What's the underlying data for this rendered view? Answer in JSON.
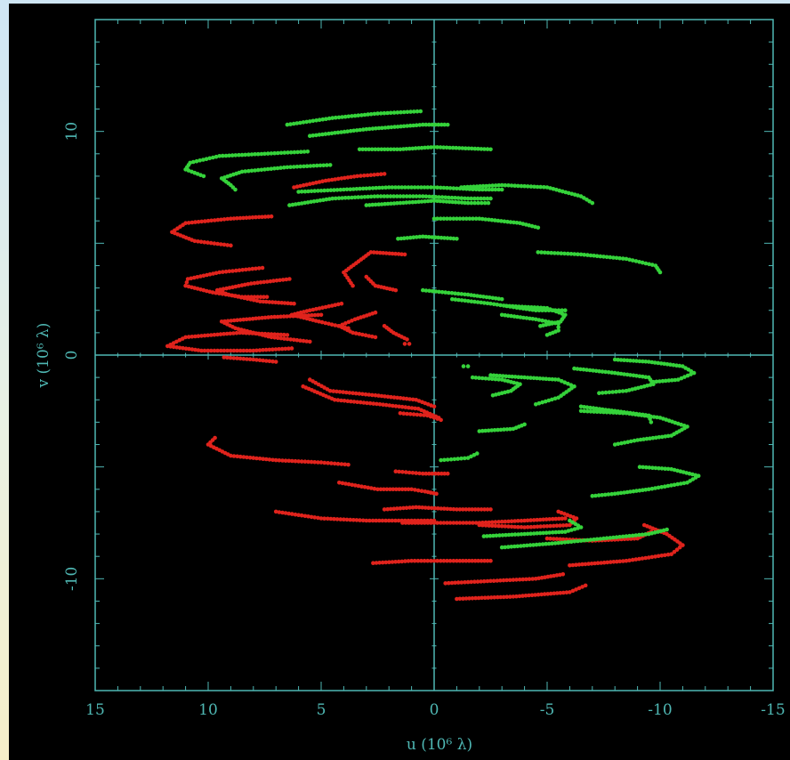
{
  "chart_data": {
    "type": "scatter",
    "title": "",
    "xlabel": "u  (10⁶ λ)",
    "ylabel": "v  (10⁶ λ)",
    "xlim": [
      15,
      -15
    ],
    "ylim": [
      -15,
      15
    ],
    "xticks": [
      15,
      10,
      5,
      0,
      -5,
      -10,
      -15
    ],
    "xtick_labels": [
      "15",
      "10",
      "5",
      "0",
      "-5",
      "-10",
      "-15"
    ],
    "yticks": [
      -10,
      0,
      10
    ],
    "ytick_labels": [
      "-10",
      "0",
      "10"
    ],
    "grid": false,
    "zero_lines": true,
    "colors": {
      "background": "#000000",
      "axes": "#4fb8b4",
      "red": "#e0231c",
      "green": "#35d23a"
    },
    "series": [
      {
        "color": "red",
        "tracks": [
          {
            "name": "r1",
            "x": [
              6.2,
              4.8,
              3.4,
              2.2
            ],
            "y": [
              7.5,
              7.8,
              8.0,
              8.1
            ]
          },
          {
            "name": "r2",
            "x": [
              7.2,
              9.0,
              11.0,
              11.6,
              10.6,
              9.0
            ],
            "y": [
              6.2,
              6.1,
              5.9,
              5.5,
              5.1,
              4.9
            ]
          },
          {
            "name": "r3",
            "x": [
              7.6,
              9.5,
              10.9,
              11.0,
              9.8,
              8.5,
              7.4
            ],
            "y": [
              3.9,
              3.7,
              3.4,
              3.1,
              2.8,
              2.6,
              2.6
            ]
          },
          {
            "name": "r4",
            "x": [
              6.4,
              8.1,
              9.6,
              9.1,
              7.7,
              6.2
            ],
            "y": [
              3.4,
              3.2,
              2.9,
              2.7,
              2.4,
              2.3
            ]
          },
          {
            "name": "r5",
            "x": [
              1.3,
              2.8,
              4.0,
              3.6
            ],
            "y": [
              4.5,
              4.6,
              3.7,
              3.1
            ]
          },
          {
            "name": "r6",
            "x": [
              3.0,
              2.6,
              1.7
            ],
            "y": [
              3.5,
              3.1,
              2.9
            ]
          },
          {
            "name": "r7",
            "x": [
              4.1,
              5.5,
              6.3,
              5.1,
              3.8
            ],
            "y": [
              2.3,
              2.0,
              1.8,
              1.5,
              1.2
            ]
          },
          {
            "name": "r8",
            "x": [
              5.0,
              7.2,
              9.4,
              8.8,
              7.2,
              5.5
            ],
            "y": [
              1.8,
              1.7,
              1.5,
              1.2,
              0.8,
              0.6
            ]
          },
          {
            "name": "r9",
            "x": [
              2.6,
              3.5,
              4.2,
              3.6,
              2.6
            ],
            "y": [
              1.9,
              1.6,
              1.3,
              1.0,
              0.8
            ]
          },
          {
            "name": "r10",
            "x": [
              6.5,
              8.6,
              11.0,
              11.8,
              10.3,
              8.0,
              6.3
            ],
            "y": [
              0.9,
              1.0,
              0.8,
              0.4,
              0.2,
              0.2,
              0.3
            ]
          },
          {
            "name": "r11",
            "x": [
              2.2,
              1.8,
              1.2
            ],
            "y": [
              1.3,
              1.0,
              0.7
            ]
          },
          {
            "name": "r12",
            "x": [
              9.3,
              8.0,
              7.0
            ],
            "y": [
              -0.1,
              -0.2,
              -0.3
            ]
          },
          {
            "name": "r13",
            "x": [
              1.3,
              1.1
            ],
            "y": [
              0.5,
              0.5
            ]
          },
          {
            "name": "r14",
            "x": [
              5.5,
              4.6,
              2.6,
              0.8,
              0.0
            ],
            "y": [
              -1.1,
              -1.6,
              -1.8,
              -2.0,
              -2.3
            ]
          },
          {
            "name": "r15",
            "x": [
              5.8,
              4.4,
              2.4,
              0.7,
              -0.2
            ],
            "y": [
              -1.4,
              -2.0,
              -2.2,
              -2.4,
              -2.8
            ]
          },
          {
            "name": "r16",
            "x": [
              1.5,
              0.3,
              -0.3
            ],
            "y": [
              -2.6,
              -2.7,
              -2.9
            ]
          },
          {
            "name": "r17",
            "x": [
              9.7,
              10.0,
              9.0,
              7.0,
              5.0,
              3.8
            ],
            "y": [
              -3.7,
              -4.0,
              -4.5,
              -4.7,
              -4.8,
              -4.9
            ]
          },
          {
            "name": "r18",
            "x": [
              1.7,
              0.5,
              -0.6
            ],
            "y": [
              -5.2,
              -5.3,
              -5.3
            ]
          },
          {
            "name": "r19",
            "x": [
              4.2,
              2.5,
              1.0,
              0.4,
              -0.1
            ],
            "y": [
              -5.7,
              -6.0,
              -6.0,
              -6.1,
              -6.2
            ]
          },
          {
            "name": "r20",
            "x": [
              7.0,
              5.0,
              3.0,
              1.0,
              0.0
            ],
            "y": [
              -7.0,
              -7.3,
              -7.4,
              -7.4,
              -7.4
            ]
          },
          {
            "name": "r21",
            "x": [
              2.2,
              0.8,
              -1.0,
              -2.5
            ],
            "y": [
              -6.9,
              -6.8,
              -6.9,
              -6.9
            ]
          },
          {
            "name": "r22",
            "x": [
              1.4,
              0.0,
              -2.0,
              -4.0,
              -5.8
            ],
            "y": [
              -7.5,
              -7.5,
              -7.5,
              -7.4,
              -7.3
            ]
          },
          {
            "name": "r23",
            "x": [
              -2.0,
              -4.0,
              -6.0,
              -6.3,
              -5.5
            ],
            "y": [
              -7.6,
              -7.7,
              -7.6,
              -7.3,
              -7.0
            ]
          },
          {
            "name": "r24",
            "x": [
              -5.0,
              -7.0,
              -9.0,
              -9.6
            ],
            "y": [
              -8.2,
              -8.3,
              -8.2,
              -7.9
            ]
          },
          {
            "name": "r25",
            "x": [
              -6.0,
              -8.5,
              -10.5,
              -11.0,
              -10.3,
              -9.3
            ],
            "y": [
              -9.4,
              -9.2,
              -8.9,
              -8.5,
              -8.0,
              -7.6
            ]
          },
          {
            "name": "r26",
            "x": [
              2.7,
              1.0,
              -1.0,
              -2.5
            ],
            "y": [
              -9.3,
              -9.2,
              -9.2,
              -9.2
            ]
          },
          {
            "name": "r27",
            "x": [
              -0.5,
              -2.5,
              -4.5,
              -5.7
            ],
            "y": [
              -10.2,
              -10.1,
              -10.0,
              -9.8
            ]
          },
          {
            "name": "r28",
            "x": [
              -1.0,
              -3.5,
              -6.0,
              -6.7
            ],
            "y": [
              -10.9,
              -10.8,
              -10.6,
              -10.3
            ]
          }
        ]
      },
      {
        "color": "green",
        "tracks": [
          {
            "name": "g1",
            "x": [
              6.5,
              4.5,
              2.5,
              0.6
            ],
            "y": [
              10.3,
              10.6,
              10.8,
              10.9
            ]
          },
          {
            "name": "g2",
            "x": [
              5.5,
              3.0,
              0.5,
              -0.6
            ],
            "y": [
              9.8,
              10.1,
              10.3,
              10.3
            ]
          },
          {
            "name": "g3",
            "x": [
              3.3,
              1.5,
              0.0,
              -2.5
            ],
            "y": [
              9.2,
              9.2,
              9.3,
              9.2
            ]
          },
          {
            "name": "g4",
            "x": [
              5.6,
              7.5,
              9.5,
              10.8,
              11.0,
              10.2
            ],
            "y": [
              9.1,
              9.0,
              8.9,
              8.6,
              8.3,
              8.0
            ]
          },
          {
            "name": "g5",
            "x": [
              4.6,
              6.5,
              8.5,
              9.4,
              9.0,
              8.8
            ],
            "y": [
              8.5,
              8.4,
              8.2,
              7.9,
              7.6,
              7.4
            ]
          },
          {
            "name": "g6",
            "x": [
              6.0,
              4.0,
              2.0,
              0.0,
              -2.0,
              -3.0
            ],
            "y": [
              7.3,
              7.4,
              7.5,
              7.5,
              7.4,
              7.4
            ]
          },
          {
            "name": "g7",
            "x": [
              6.4,
              4.5,
              2.5,
              0.5,
              -1.5,
              -2.5
            ],
            "y": [
              6.7,
              7.0,
              7.1,
              7.1,
              7.0,
              7.0
            ]
          },
          {
            "name": "g8",
            "x": [
              3.0,
              1.5,
              0.0,
              -1.5,
              -2.4
            ],
            "y": [
              6.7,
              6.8,
              6.9,
              6.8,
              6.8
            ]
          },
          {
            "name": "g9",
            "x": [
              -1.2,
              -3.0,
              -5.0,
              -6.5,
              -7.0
            ],
            "y": [
              7.5,
              7.6,
              7.5,
              7.1,
              6.8
            ]
          },
          {
            "name": "g10",
            "x": [
              0.0,
              -2.0,
              -3.8,
              -4.6
            ],
            "y": [
              6.1,
              6.1,
              5.9,
              5.7
            ]
          },
          {
            "name": "g11",
            "x": [
              1.6,
              0.5,
              -1.0
            ],
            "y": [
              5.2,
              5.3,
              5.2
            ]
          },
          {
            "name": "g12",
            "x": [
              -4.6,
              -6.5,
              -8.5,
              -9.8,
              -10.0
            ],
            "y": [
              4.6,
              4.5,
              4.3,
              4.0,
              3.7
            ]
          },
          {
            "name": "g13",
            "x": [
              0.5,
              -1.5,
              -3.0
            ],
            "y": [
              2.9,
              2.7,
              2.5
            ]
          },
          {
            "name": "g14",
            "x": [
              -0.8,
              -2.5,
              -3.8,
              -4.5,
              -5.8
            ],
            "y": [
              2.5,
              2.3,
              2.1,
              2.0,
              2.0
            ]
          },
          {
            "name": "g15",
            "x": [
              -3.2,
              -5.0,
              -5.8,
              -5.6,
              -4.7
            ],
            "y": [
              2.2,
              2.1,
              1.8,
              1.5,
              1.3
            ]
          },
          {
            "name": "g16",
            "x": [
              -3.0,
              -4.5,
              -5.5,
              -5.5,
              -5.0
            ],
            "y": [
              1.8,
              1.6,
              1.4,
              1.1,
              0.9
            ]
          },
          {
            "name": "g17",
            "x": [
              -1.3,
              -1.5
            ],
            "y": [
              -0.5,
              -0.5
            ]
          },
          {
            "name": "g18",
            "x": [
              -8.0,
              -9.5,
              -11.0,
              -11.5,
              -10.8,
              -9.7
            ],
            "y": [
              -0.2,
              -0.3,
              -0.5,
              -0.8,
              -1.1,
              -1.2
            ]
          },
          {
            "name": "g19",
            "x": [
              -6.2,
              -8.0,
              -9.5,
              -9.7,
              -8.5,
              -7.3
            ],
            "y": [
              -0.6,
              -0.8,
              -1.0,
              -1.3,
              -1.6,
              -1.7
            ]
          },
          {
            "name": "g20",
            "x": [
              -2.5,
              -4.0,
              -5.5,
              -6.2,
              -5.5,
              -4.5
            ],
            "y": [
              -0.9,
              -1.0,
              -1.1,
              -1.4,
              -1.9,
              -2.2
            ]
          },
          {
            "name": "g21",
            "x": [
              -1.7,
              -3.0,
              -3.8,
              -3.4,
              -2.6
            ],
            "y": [
              -1.0,
              -1.1,
              -1.3,
              -1.6,
              -1.8
            ]
          },
          {
            "name": "g22",
            "x": [
              -6.5,
              -8.0,
              -9.5,
              -9.6
            ],
            "y": [
              -2.3,
              -2.5,
              -2.7,
              -3.0
            ]
          },
          {
            "name": "g23",
            "x": [
              -6.5,
              -8.5,
              -10.0,
              -11.2,
              -10.5,
              -9.0,
              -8.0
            ],
            "y": [
              -2.5,
              -2.6,
              -2.8,
              -3.2,
              -3.6,
              -3.8,
              -4.0
            ]
          },
          {
            "name": "g24",
            "x": [
              -2.0,
              -3.5,
              -4.0
            ],
            "y": [
              -3.4,
              -3.3,
              -3.1
            ]
          },
          {
            "name": "g25",
            "x": [
              -0.3,
              -1.5,
              -1.9
            ],
            "y": [
              -4.7,
              -4.6,
              -4.4
            ]
          },
          {
            "name": "g26",
            "x": [
              -9.1,
              -10.5,
              -11.7,
              -11.2,
              -9.5,
              -8.0,
              -7.0
            ],
            "y": [
              -5.0,
              -5.1,
              -5.4,
              -5.7,
              -6.0,
              -6.2,
              -6.3
            ]
          },
          {
            "name": "g27",
            "x": [
              -2.2,
              -4.0,
              -5.8,
              -6.5,
              -6.0
            ],
            "y": [
              -8.1,
              -8.0,
              -7.9,
              -7.7,
              -7.4
            ]
          },
          {
            "name": "g28",
            "x": [
              -3.0,
              -5.5,
              -7.5,
              -9.5,
              -10.3
            ],
            "y": [
              -8.6,
              -8.4,
              -8.2,
              -8.0,
              -7.8
            ]
          }
        ]
      }
    ]
  }
}
